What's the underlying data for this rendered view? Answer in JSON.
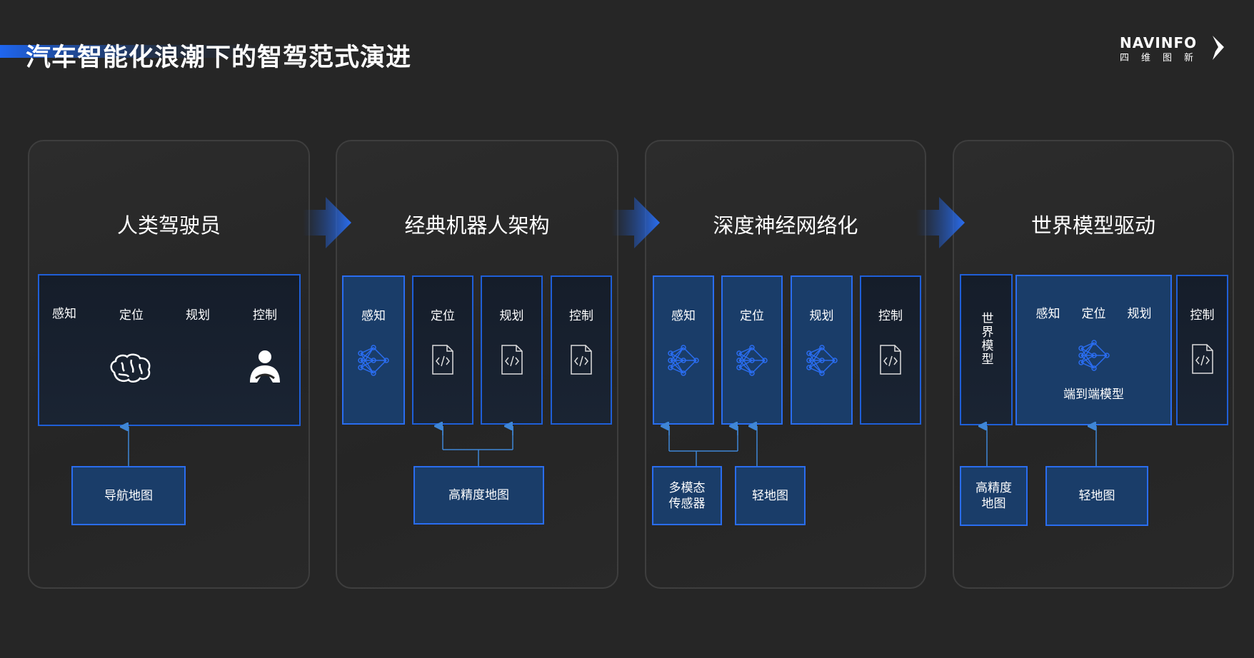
{
  "title": "汽车智能化浪潮下的智驾范式演进",
  "logo": {
    "en": "NAVINFO",
    "cn": "四维图新"
  },
  "stages": [
    {
      "title": "人类驾驶员",
      "modules": [
        "感知",
        "定位",
        "规划",
        "控制"
      ],
      "sources": [
        "导航地图"
      ]
    },
    {
      "title": "经典机器人架构",
      "modules": [
        "感知",
        "定位",
        "规划",
        "控制"
      ],
      "sources": [
        "高精度地图"
      ]
    },
    {
      "title": "深度神经网络化",
      "modules": [
        "感知",
        "定位",
        "规划",
        "控制"
      ],
      "sources": [
        "多模态传感器",
        "轻地图"
      ]
    },
    {
      "title": "世界模型驱动",
      "world_model": "世界模型",
      "modules": [
        "感知",
        "定位",
        "规划",
        "控制"
      ],
      "e2e_label": "端到端模型",
      "sources": [
        "高精度地图",
        "轻地图"
      ]
    }
  ],
  "colors": {
    "accent": "#2a6df0",
    "box_fill": "#1a3d69",
    "background": "#262626"
  }
}
